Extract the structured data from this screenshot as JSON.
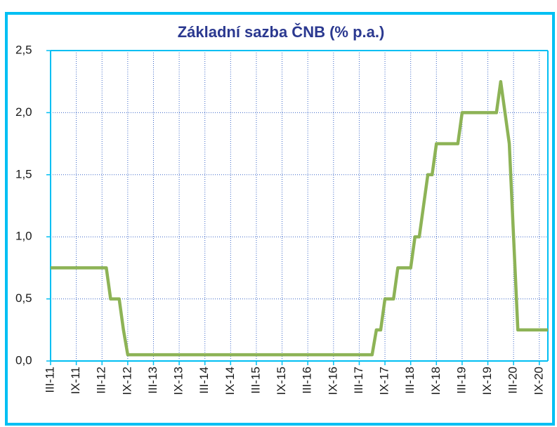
{
  "chart_data": {
    "type": "line",
    "title": "Základní sazba ČNB (% p.a.)",
    "categories": [
      "III-11",
      null,
      null,
      null,
      null,
      null,
      "IX-11",
      null,
      null,
      null,
      null,
      null,
      "III-12",
      null,
      null,
      null,
      null,
      null,
      "IX-12",
      null,
      null,
      null,
      null,
      null,
      "III-13",
      null,
      null,
      null,
      null,
      null,
      "IX-13",
      null,
      null,
      null,
      null,
      null,
      "III-14",
      null,
      null,
      null,
      null,
      null,
      "IX-14",
      null,
      null,
      null,
      null,
      null,
      "III-15",
      null,
      null,
      null,
      null,
      null,
      "IX-15",
      null,
      null,
      null,
      null,
      null,
      "III-16",
      null,
      null,
      null,
      null,
      null,
      "IX-16",
      null,
      null,
      null,
      null,
      null,
      "III-17",
      null,
      null,
      null,
      null,
      null,
      "IX-17",
      null,
      null,
      null,
      null,
      null,
      "III-18",
      null,
      null,
      null,
      null,
      null,
      "IX-18",
      null,
      null,
      null,
      null,
      null,
      "III-19",
      null,
      null,
      null,
      null,
      null,
      "IX-19",
      null,
      null,
      null,
      null,
      null,
      "III-20",
      null,
      null,
      null,
      null,
      null,
      "IX-20",
      null,
      null
    ],
    "values": [
      0.75,
      0.75,
      0.75,
      0.75,
      0.75,
      0.75,
      0.75,
      0.75,
      0.75,
      0.75,
      0.75,
      0.75,
      0.75,
      0.75,
      0.5,
      0.5,
      0.5,
      0.25,
      0.05,
      0.05,
      0.05,
      0.05,
      0.05,
      0.05,
      0.05,
      0.05,
      0.05,
      0.05,
      0.05,
      0.05,
      0.05,
      0.05,
      0.05,
      0.05,
      0.05,
      0.05,
      0.05,
      0.05,
      0.05,
      0.05,
      0.05,
      0.05,
      0.05,
      0.05,
      0.05,
      0.05,
      0.05,
      0.05,
      0.05,
      0.05,
      0.05,
      0.05,
      0.05,
      0.05,
      0.05,
      0.05,
      0.05,
      0.05,
      0.05,
      0.05,
      0.05,
      0.05,
      0.05,
      0.05,
      0.05,
      0.05,
      0.05,
      0.05,
      0.05,
      0.05,
      0.05,
      0.05,
      0.05,
      0.05,
      0.05,
      0.05,
      0.25,
      0.25,
      0.5,
      0.5,
      0.5,
      0.75,
      0.75,
      0.75,
      0.75,
      1.0,
      1.0,
      1.25,
      1.5,
      1.5,
      1.75,
      1.75,
      1.75,
      1.75,
      1.75,
      1.75,
      2.0,
      2.0,
      2.0,
      2.0,
      2.0,
      2.0,
      2.0,
      2.0,
      2.0,
      2.25,
      2.0,
      1.75,
      1.0,
      0.25,
      0.25,
      0.25,
      0.25,
      0.25,
      0.25,
      0.25,
      0.25
    ],
    "color": "#8db356",
    "ylim": [
      0,
      2.5
    ],
    "yticks": [
      {
        "value": 0,
        "label": "0,0"
      },
      {
        "value": 0.5,
        "label": "0,5"
      },
      {
        "value": 1,
        "label": "1,0"
      },
      {
        "value": 1.5,
        "label": "1,5"
      },
      {
        "value": 2,
        "label": "2,0"
      },
      {
        "value": 2.5,
        "label": "2,5"
      }
    ],
    "grid": true
  }
}
